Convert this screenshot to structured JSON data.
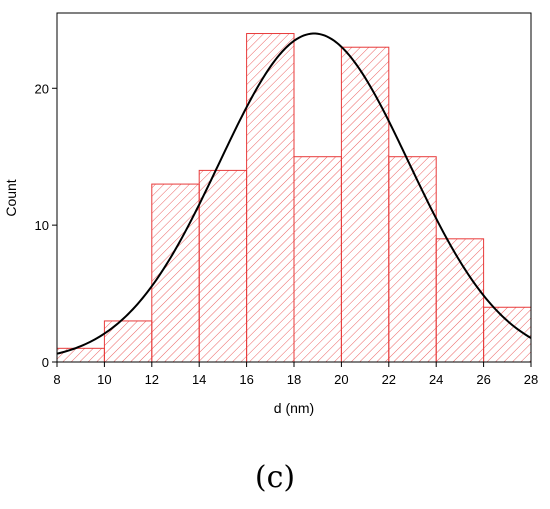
{
  "chart_data": {
    "type": "bar",
    "title": "",
    "xlabel": "d (nm)",
    "ylabel": "Count",
    "xlim": [
      8,
      28
    ],
    "ylim": [
      0,
      25.5
    ],
    "xticks": [
      "8",
      "10",
      "12",
      "14",
      "16",
      "18",
      "20",
      "22",
      "24",
      "26",
      "28"
    ],
    "yticks": [
      "0",
      "10",
      "20"
    ],
    "bins": [
      {
        "x0": 8,
        "x1": 10,
        "value": 1
      },
      {
        "x0": 10,
        "x1": 12,
        "value": 3
      },
      {
        "x0": 12,
        "x1": 14,
        "value": 13
      },
      {
        "x0": 14,
        "x1": 16,
        "value": 14
      },
      {
        "x0": 16,
        "x1": 18,
        "value": 24
      },
      {
        "x0": 18,
        "x1": 20,
        "value": 15
      },
      {
        "x0": 20,
        "x1": 22,
        "value": 23
      },
      {
        "x0": 22,
        "x1": 24,
        "value": 15
      },
      {
        "x0": 24,
        "x1": 26,
        "value": 9
      },
      {
        "x0": 26,
        "x1": 28,
        "value": 4
      }
    ],
    "fit_curve": {
      "type": "gaussian",
      "center": 18.85,
      "sigma": 4.0,
      "amplitude": 24
    },
    "bar_color": "#e83a3a",
    "bar_hatch": "diagonal",
    "curve_color": "#000000",
    "grid": false
  },
  "panel_label": "(c)"
}
